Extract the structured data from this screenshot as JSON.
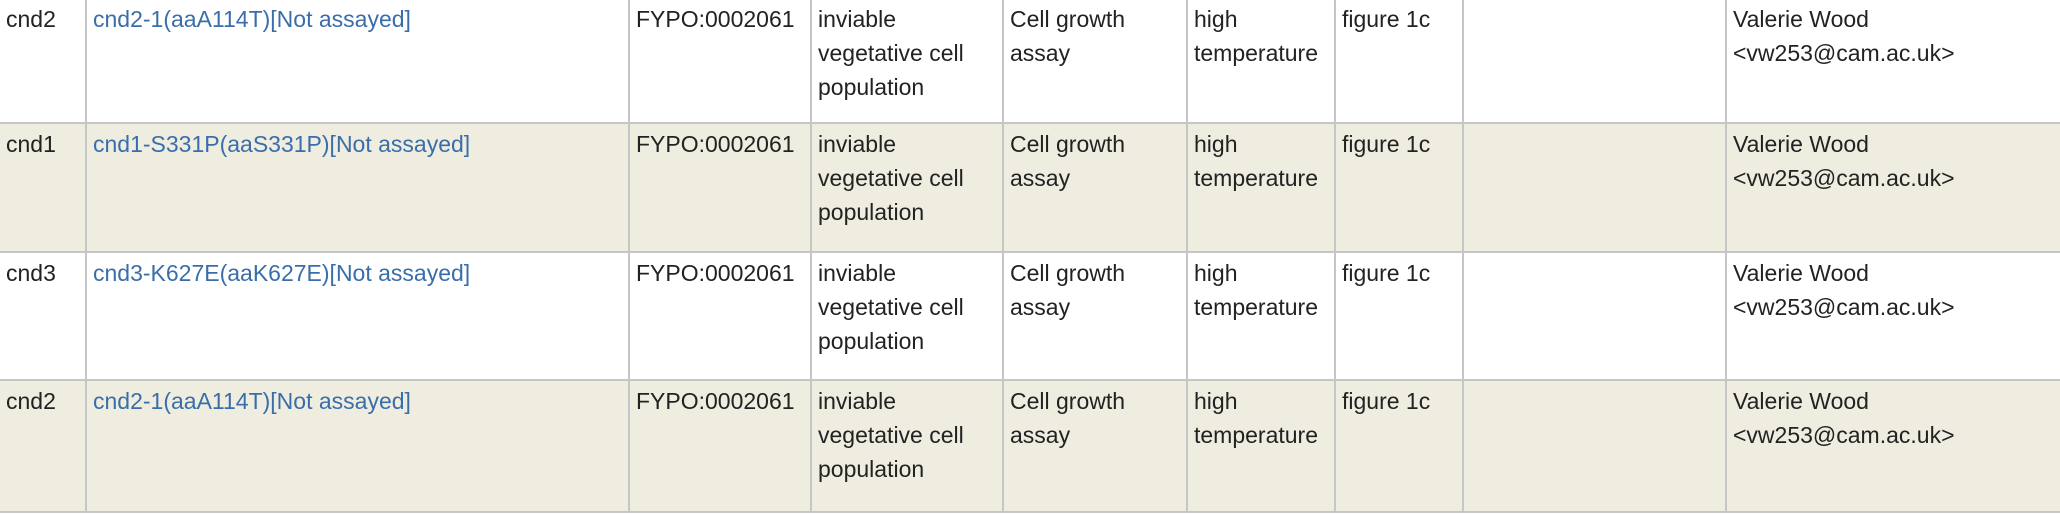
{
  "rows": [
    {
      "gene": "cnd2",
      "allele": "cnd2-1(aaA114T)[Not assayed]",
      "term_id": "FYPO:0002061",
      "term_name": "inviable vegetative cell population",
      "evidence": "Cell growth assay",
      "condition": "high temperature",
      "reference": "figure 1c",
      "extension": "",
      "curator": "Valerie Wood <vw253@cam.ac.uk>"
    },
    {
      "gene": "cnd1",
      "allele": "cnd1-S331P(aaS331P)[Not assayed]",
      "term_id": "FYPO:0002061",
      "term_name": "inviable vegetative cell population",
      "evidence": "Cell growth assay",
      "condition": "high temperature",
      "reference": "figure 1c",
      "extension": "",
      "curator": "Valerie Wood <vw253@cam.ac.uk>"
    },
    {
      "gene": "cnd3",
      "allele": "cnd3-K627E(aaK627E)[Not assayed]",
      "term_id": "FYPO:0002061",
      "term_name": "inviable vegetative cell population",
      "evidence": "Cell growth assay",
      "condition": "high temperature",
      "reference": "figure 1c",
      "extension": "",
      "curator": "Valerie Wood <vw253@cam.ac.uk>"
    },
    {
      "gene": "cnd2",
      "allele": "cnd2-1(aaA114T)[Not assayed]",
      "term_id": "FYPO:0002061",
      "term_name": "inviable vegetative cell population",
      "evidence": "Cell growth assay",
      "condition": "high temperature",
      "reference": "figure 1c",
      "extension": "",
      "curator": "Valerie Wood <vw253@cam.ac.uk>"
    }
  ],
  "colors": {
    "link": "#3a6eab",
    "row_alt_bg": "#eeede0",
    "border": "#c6c6c6",
    "text": "#222222"
  }
}
